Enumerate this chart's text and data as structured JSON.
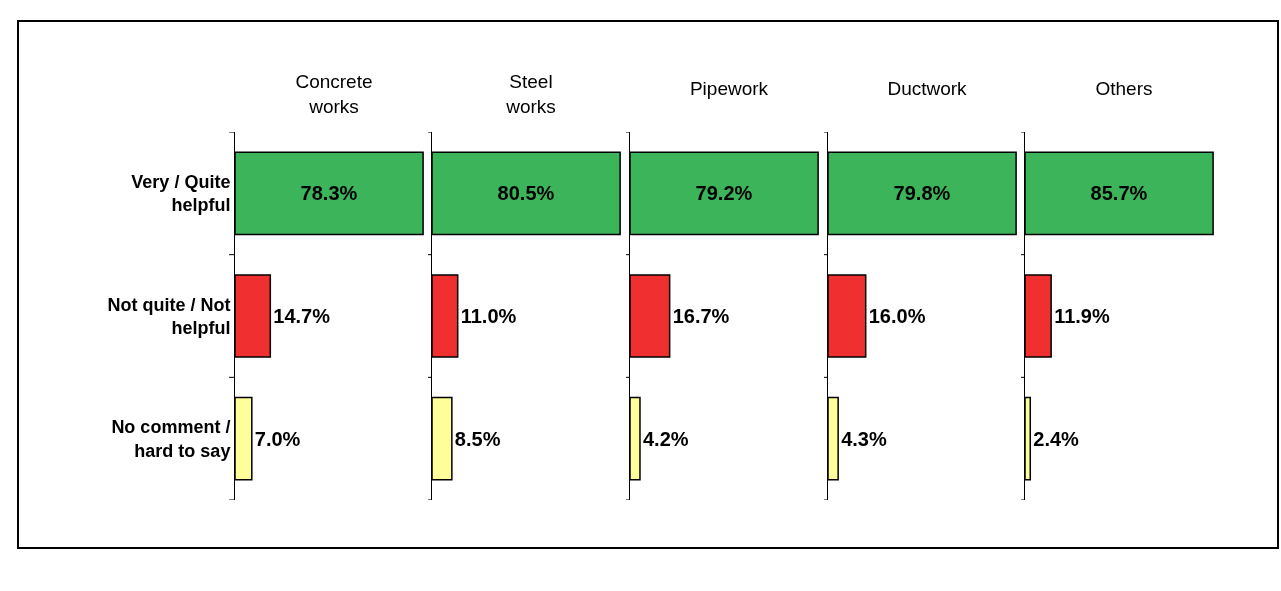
{
  "chart_data": [
    {
      "type": "bar",
      "orientation": "horizontal",
      "title": "Concrete\nworks",
      "categories": [
        "Very / Quite\nhelpful",
        "Not quite / Not\nhelpful",
        "No comment /\nhard to say"
      ],
      "values": [
        78.3,
        14.7,
        7.0
      ],
      "value_labels": [
        "78.3%",
        "14.7%",
        "7.0%"
      ],
      "colors": [
        "#3cb55a",
        "#f03030",
        "#ffff99"
      ],
      "tick_labels": "y"
    },
    {
      "type": "bar",
      "orientation": "horizontal",
      "title": "Steel\nworks",
      "categories": [
        null,
        null,
        null
      ],
      "values": [
        80.5,
        11.0,
        8.5
      ],
      "value_labels": [
        "80.5%",
        "11.0%",
        "8.5%"
      ],
      "colors": [
        "#3cb55a",
        "#f03030",
        "#ffff99"
      ],
      "tick_labels": false
    },
    {
      "type": "bar",
      "orientation": "horizontal",
      "title": "Pipework",
      "categories": [
        null,
        null,
        null
      ],
      "values": [
        79.2,
        16.7,
        4.2
      ],
      "value_labels": [
        "79.2%",
        "16.7%",
        "4.2%"
      ],
      "colors": [
        "#3cb55a",
        "#f03030",
        "#ffff99"
      ],
      "tick_labels": false
    },
    {
      "type": "bar",
      "orientation": "horizontal",
      "title": "Ductwork",
      "categories": [
        null,
        null,
        null
      ],
      "values": [
        79.8,
        16.0,
        4.3
      ],
      "value_labels": [
        "79.8%",
        "16.0%",
        "4.3%"
      ],
      "colors": [
        "#3cb55a",
        "#f03030",
        "#ffff99"
      ],
      "tick_labels": false
    },
    {
      "type": "bar",
      "orientation": "horizontal",
      "title": "Others",
      "categories": [
        null,
        null,
        null
      ],
      "values": [
        85.7,
        11.9,
        2.4
      ],
      "value_labels": [
        "85.7%",
        "11.9%",
        "2.4%"
      ],
      "colors": [
        "#3cb55a",
        "#f03030",
        "#ffff99"
      ],
      "tick_labels": false
    }
  ]
}
